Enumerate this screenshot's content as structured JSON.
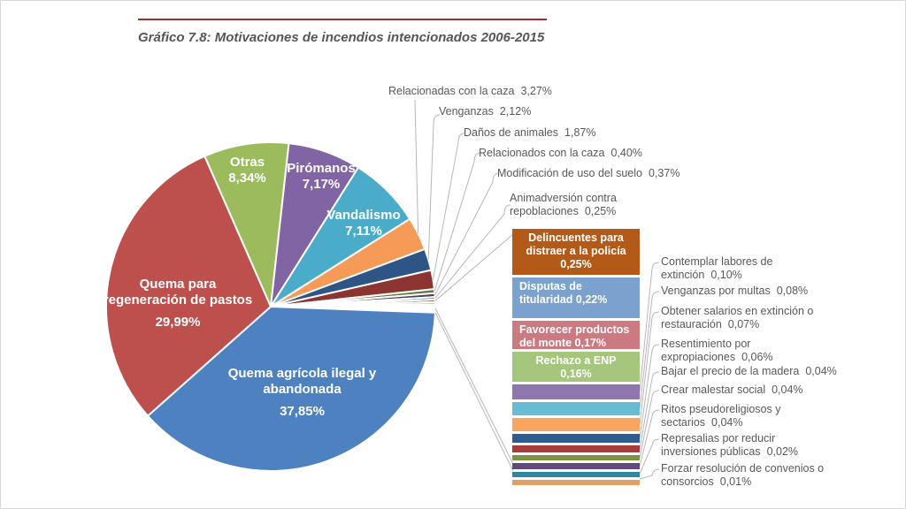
{
  "header": {
    "title": "Gráfico 7.8: Motivaciones de incendios intencionados 2006-2015",
    "rule_color": "#a2292d"
  },
  "colors": {
    "callout_text": "#58595b",
    "leader_line": "#b7b7b7",
    "slice_border": "#ffffff"
  },
  "chart_data": {
    "type": "pie",
    "title": "Gráfico 7.8: Motivaciones de incendios intencionados 2006-2015",
    "unit": "%",
    "rotation_deg": -23.7,
    "legend_position": "right-breakout-column",
    "slices": [
      {
        "label": "Otras",
        "value": 8.34,
        "pct": "8,34%",
        "color": "#9cbb5d"
      },
      {
        "label": "Pirómanos",
        "value": 7.17,
        "pct": "7,17%",
        "color": "#8164a3"
      },
      {
        "label": "Vandalismo",
        "value": 7.11,
        "pct": "7,11%",
        "color": "#4bacca"
      },
      {
        "label": "Relacionadas con la caza",
        "value": 3.27,
        "pct": "3,27%",
        "color": "#f59b57"
      },
      {
        "label": "Venganzas",
        "value": 2.12,
        "pct": "2,12%",
        "color": "#2e5585"
      },
      {
        "label": "Daños de animales",
        "value": 1.87,
        "pct": "1,87%",
        "color": "#8c3431"
      },
      {
        "label": "Relacionados con la caza",
        "value": 0.4,
        "pct": "0,40%",
        "color": "#5e7a34"
      },
      {
        "label": "Modificación de uso del suelo",
        "value": 0.37,
        "pct": "0,37%",
        "color": "#4b3d66"
      },
      {
        "label": "Animadversión contra repoblaciones",
        "value": 0.25,
        "pct": "0,25%",
        "color": "#31849b"
      },
      {
        "label": "Delincuentes para distraer a la policía",
        "value": 0.25,
        "pct": "0,25%",
        "color": "#b35a18"
      },
      {
        "label": "Disputas de titularidad",
        "value": 0.22,
        "pct": "0,22%",
        "color": "#7ba1cf"
      },
      {
        "label": "Favorecer productos del monte",
        "value": 0.17,
        "pct": "0,17%",
        "color": "#ca7a80"
      },
      {
        "label": "Rechazo a ENP",
        "value": 0.16,
        "pct": "0,16%",
        "color": "#a6c57d"
      },
      {
        "label": "Contemplar labores de extinción",
        "value": 0.1,
        "pct": "0,10%",
        "color": "#8f77ae"
      },
      {
        "label": "Venganzas por multas",
        "value": 0.08,
        "pct": "0,08%",
        "color": "#68bcd1"
      },
      {
        "label": "Obtener salarios en extinción o restauración",
        "value": 0.07,
        "pct": "0,07%",
        "color": "#f9a55f"
      },
      {
        "label": "Resentimiento por expropiaciones",
        "value": 0.06,
        "pct": "0,06%",
        "color": "#2d5c8f"
      },
      {
        "label": "Bajar el precio de la madera",
        "value": 0.04,
        "pct": "0,04%",
        "color": "#a83c38"
      },
      {
        "label": "Crear malestar social",
        "value": 0.04,
        "pct": "0,04%",
        "color": "#7b9342"
      },
      {
        "label": "Ritos pseudoreligiosos y sectarios",
        "value": 0.04,
        "pct": "0,04%",
        "color": "#5f4b7a"
      },
      {
        "label": "Represalias por reducir inversiones públicas",
        "value": 0.02,
        "pct": "0,02%",
        "color": "#2f87a1"
      },
      {
        "label": "Forzar resolución de convenios o consorcios",
        "value": 0.01,
        "pct": "0,01%",
        "color": "#e0a168"
      },
      {
        "label": "Quema agrícola ilegal y abandonada",
        "value": 37.85,
        "pct": "37,85%",
        "color": "#4d81bf"
      },
      {
        "label": "Quema para regeneración de pastos",
        "value": 29.99,
        "pct": "29,99%",
        "color": "#bd4f4c"
      }
    ]
  }
}
